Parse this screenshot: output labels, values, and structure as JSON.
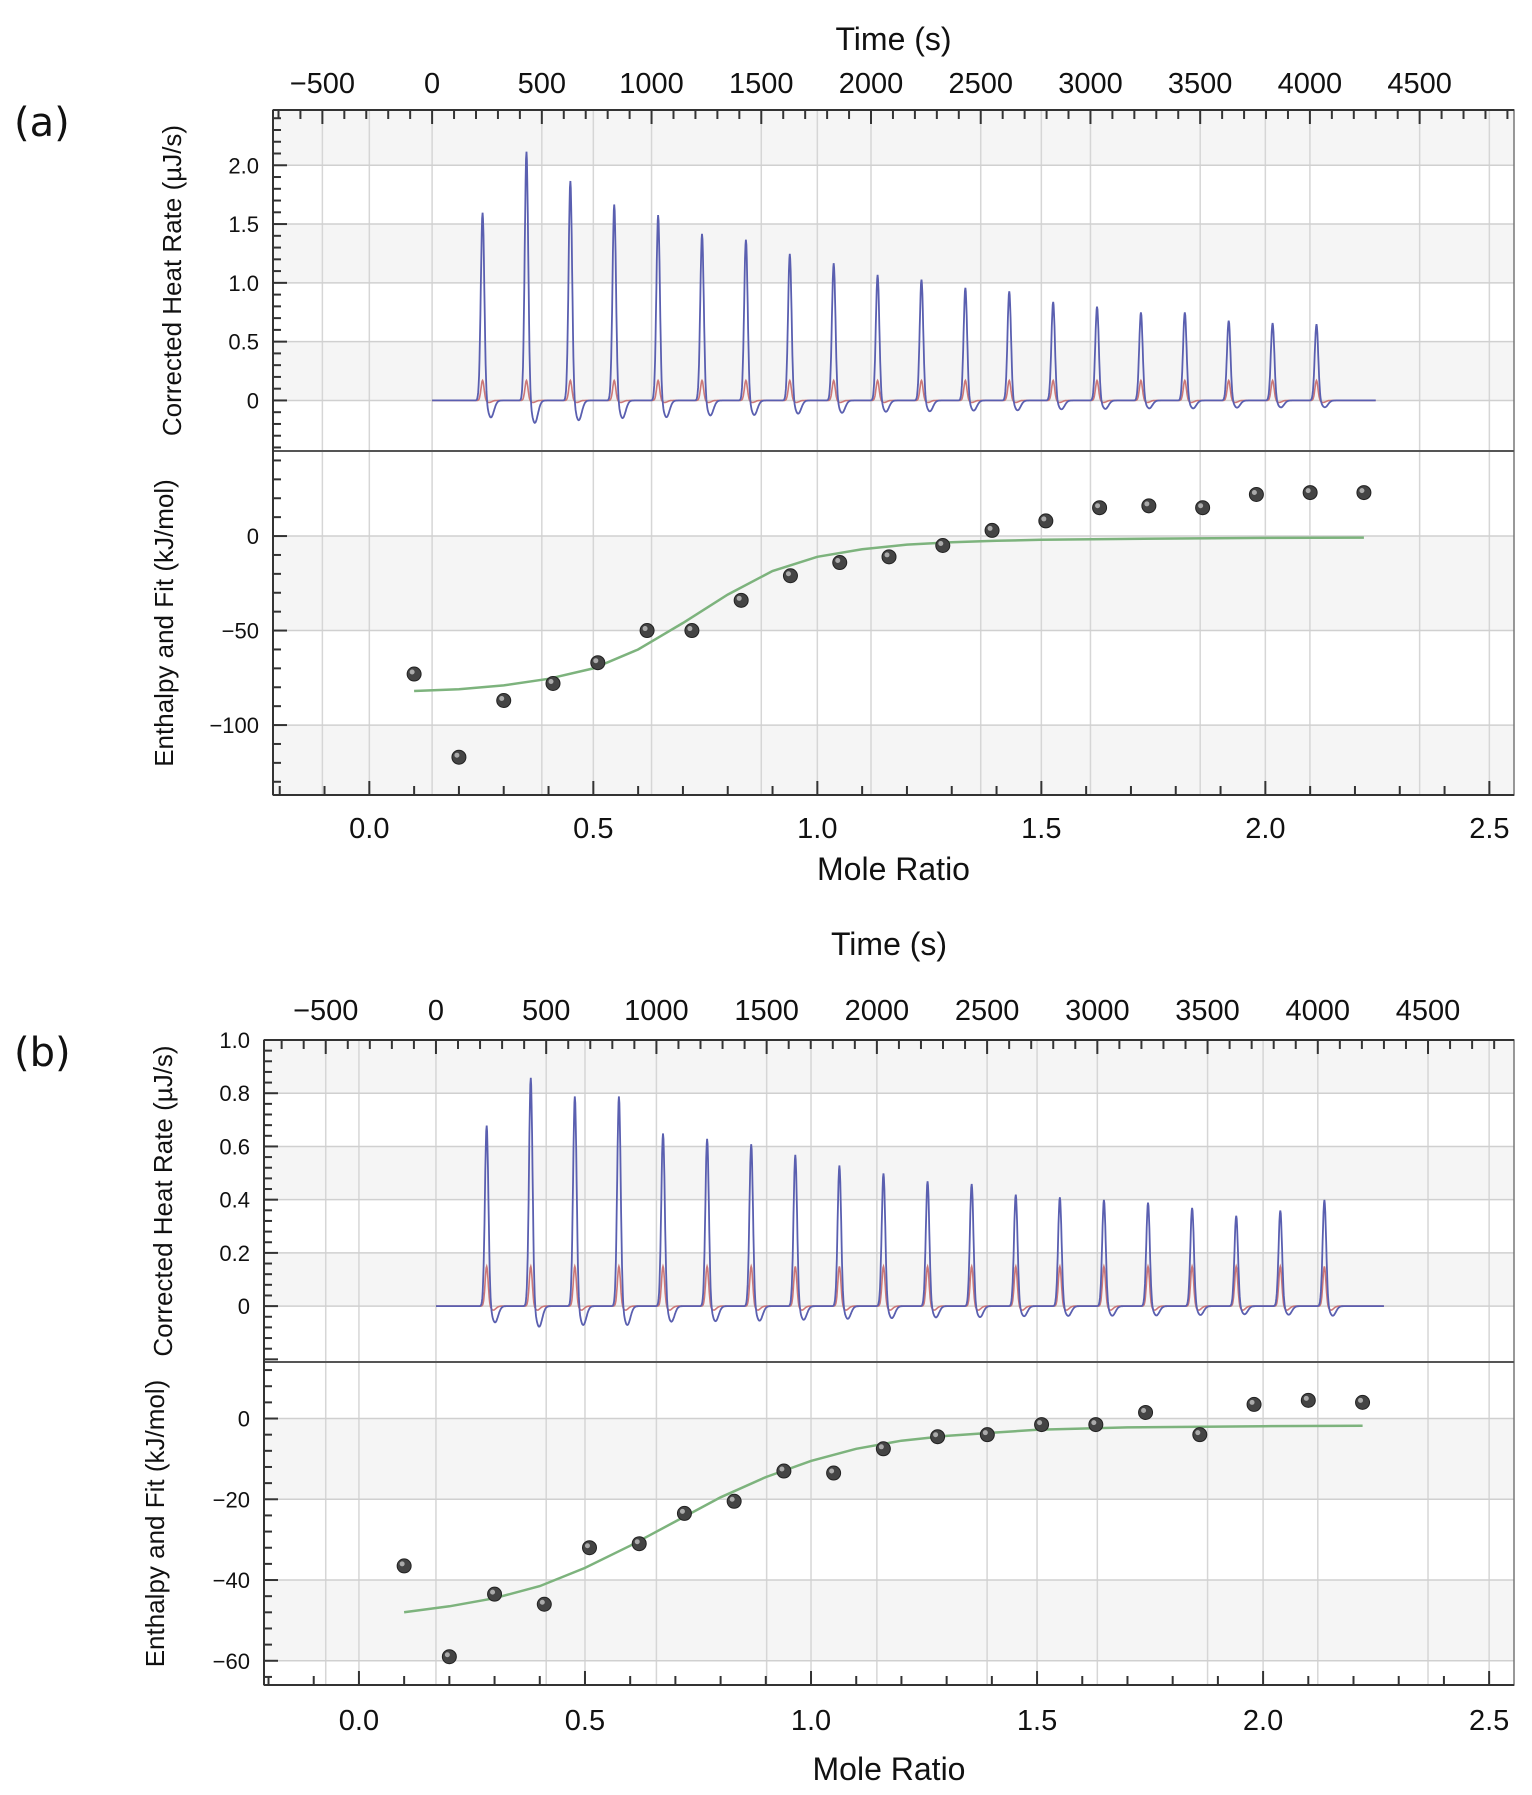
{
  "chart_data": [
    {
      "type": "line",
      "panel_label": "(a)",
      "top_axis": {
        "label": "Time (s)",
        "ticks": [
          "−500",
          "0",
          "500",
          "1000",
          "1500",
          "2000",
          "2500",
          "3000",
          "3500",
          "4000",
          "4500"
        ],
        "range": [
          -725,
          4930
        ]
      },
      "bottom_axis": {
        "label": "Mole Ratio",
        "ticks": [
          "0.0",
          "0.5",
          "1.0",
          "1.5",
          "2.0",
          "2.5"
        ],
        "range": [
          -0.215,
          2.555
        ]
      },
      "heat_rate": {
        "ylabel": "Corrected Heat Rate (µJ/s)",
        "ticks": [
          "0",
          "0.5",
          "1.0",
          "1.5",
          "2.0"
        ],
        "tick_values": [
          0,
          0.5,
          1.0,
          1.5,
          2.0
        ],
        "ylim": [
          -0.43,
          2.47
        ],
        "injection_times": [
          230,
          430,
          630,
          830,
          1030,
          1230,
          1430,
          1630,
          1830,
          2030,
          2230,
          2430,
          2630,
          2830,
          3030,
          3230,
          3430,
          3630,
          3830,
          4030
        ],
        "peak_heights": [
          1.6,
          2.12,
          1.87,
          1.67,
          1.58,
          1.42,
          1.37,
          1.25,
          1.17,
          1.07,
          1.03,
          0.96,
          0.93,
          0.84,
          0.8,
          0.75,
          0.75,
          0.68,
          0.66,
          0.65
        ],
        "reference_peak": 0.17,
        "time_range": [
          0,
          4300
        ],
        "series": [
          {
            "name": "sample",
            "color": "#5a5fb0"
          },
          {
            "name": "reference",
            "color": "#c86a6a"
          }
        ]
      },
      "enthalpy": {
        "ylabel": "Enthalpy and Fit (kJ/mol)",
        "ticks": [
          "0",
          "−50",
          "−100"
        ],
        "tick_values": [
          0,
          -50,
          -100
        ],
        "ylim": [
          -137,
          45
        ],
        "points_x": [
          0.1,
          0.2,
          0.3,
          0.41,
          0.51,
          0.62,
          0.72,
          0.83,
          0.94,
          1.05,
          1.16,
          1.28,
          1.39,
          1.51,
          1.63,
          1.74,
          1.86,
          1.98,
          2.1,
          2.22
        ],
        "points_y": [
          -73,
          -117,
          -87,
          -78,
          -67,
          -50,
          -50,
          -34,
          -21,
          -14,
          -11,
          -5,
          3,
          8,
          15,
          16,
          15,
          22,
          23,
          23
        ],
        "fit_x": [
          0.1,
          0.2,
          0.3,
          0.4,
          0.5,
          0.6,
          0.7,
          0.8,
          0.9,
          1.0,
          1.1,
          1.2,
          1.3,
          1.4,
          1.5,
          1.7,
          2.0,
          2.22
        ],
        "fit_y": [
          -82,
          -81,
          -79,
          -75.5,
          -70,
          -60,
          -46,
          -31,
          -18.5,
          -11,
          -7,
          -4.5,
          -3.3,
          -2.5,
          -2,
          -1.5,
          -1,
          -0.8
        ],
        "fit_color": "#7db37d"
      }
    },
    {
      "type": "line",
      "panel_label": "(b)",
      "top_axis": {
        "label": "Time (s)",
        "ticks": [
          "−500",
          "0",
          "500",
          "1000",
          "1500",
          "2000",
          "2500",
          "3000",
          "3500",
          "4000",
          "4500"
        ],
        "range": [
          -780,
          4890
        ]
      },
      "bottom_axis": {
        "label": "Mole Ratio",
        "ticks": [
          "0.0",
          "0.5",
          "1.0",
          "1.5",
          "2.0",
          "2.5"
        ],
        "range": [
          -0.21,
          2.555
        ]
      },
      "heat_rate": {
        "ylabel": "Corrected Heat Rate (µJ/s)",
        "ticks": [
          "0",
          "0.2",
          "0.4",
          "0.6",
          "0.8",
          "1.0"
        ],
        "tick_values": [
          0,
          0.2,
          0.4,
          0.6,
          0.8,
          1.0
        ],
        "ylim": [
          -0.21,
          1.0
        ],
        "injection_times": [
          230,
          430,
          630,
          830,
          1030,
          1230,
          1430,
          1630,
          1830,
          2030,
          2230,
          2430,
          2630,
          2830,
          3030,
          3230,
          3430,
          3630,
          3830,
          4030
        ],
        "peak_heights": [
          0.68,
          0.86,
          0.79,
          0.79,
          0.65,
          0.63,
          0.61,
          0.57,
          0.53,
          0.5,
          0.47,
          0.46,
          0.42,
          0.41,
          0.4,
          0.39,
          0.37,
          0.34,
          0.36,
          0.4
        ],
        "reference_peak": 0.15,
        "time_range": [
          0,
          4300
        ],
        "series": [
          {
            "name": "sample",
            "color": "#5a5fb0"
          },
          {
            "name": "reference",
            "color": "#c86a6a"
          }
        ]
      },
      "enthalpy": {
        "ylabel": "Enthalpy and Fit (kJ/mol)",
        "ticks": [
          "0",
          "−20",
          "−40",
          "−60"
        ],
        "tick_values": [
          0,
          -20,
          -40,
          -60
        ],
        "ylim": [
          -66,
          14
        ],
        "points_x": [
          0.1,
          0.2,
          0.3,
          0.41,
          0.51,
          0.62,
          0.72,
          0.83,
          0.94,
          1.05,
          1.16,
          1.28,
          1.39,
          1.51,
          1.63,
          1.74,
          1.86,
          1.98,
          2.1,
          2.22
        ],
        "points_y": [
          -36.5,
          -59,
          -43.5,
          -46,
          -32,
          -31,
          -23.5,
          -20.5,
          -13,
          -13.5,
          -7.5,
          -4.5,
          -4,
          -1.5,
          -1.5,
          1.5,
          -4,
          3.5,
          4.5,
          4
        ],
        "fit_x": [
          0.1,
          0.2,
          0.3,
          0.4,
          0.5,
          0.6,
          0.7,
          0.8,
          0.9,
          1.0,
          1.1,
          1.2,
          1.3,
          1.4,
          1.5,
          1.7,
          2.0,
          2.22
        ],
        "fit_y": [
          -48,
          -46.5,
          -44.5,
          -41.5,
          -37,
          -31.5,
          -25.5,
          -19.5,
          -14.5,
          -10.5,
          -7.5,
          -5.5,
          -4.3,
          -3.5,
          -2.8,
          -2.2,
          -1.9,
          -1.8
        ],
        "fit_color": "#7db37d"
      }
    }
  ]
}
